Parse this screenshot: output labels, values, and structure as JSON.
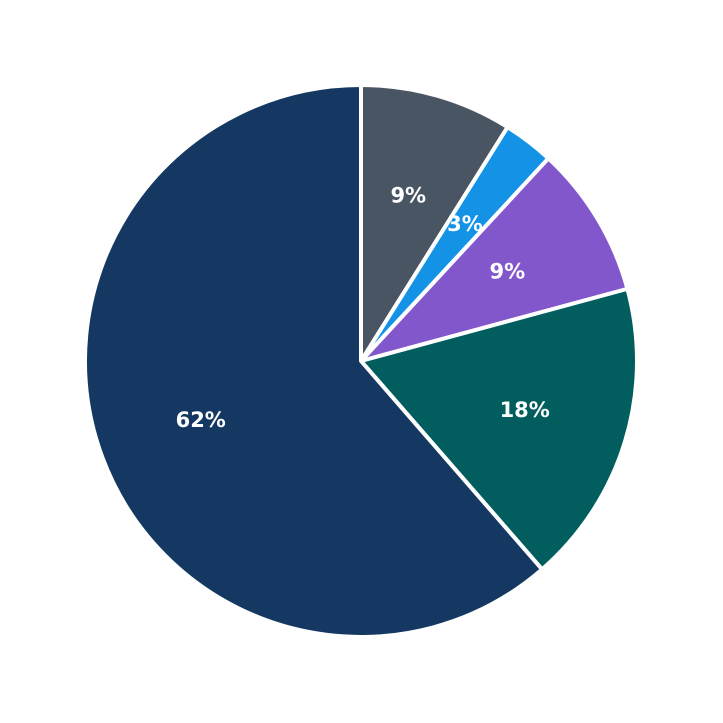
{
  "chart_data": {
    "type": "pie",
    "title": "",
    "start_angle_deg": 90,
    "direction": "clockwise",
    "slices": [
      {
        "label": "9%",
        "value": 9,
        "color": "#4a5563"
      },
      {
        "label": "3%",
        "value": 3,
        "color": "#1493e6"
      },
      {
        "label": "9%",
        "value": 9,
        "color": "#8357cc"
      },
      {
        "label": "18%",
        "value": 18,
        "color": "#025e5e"
      },
      {
        "label": "62%",
        "value": 62,
        "color": "#143862"
      }
    ],
    "legend": "none"
  }
}
